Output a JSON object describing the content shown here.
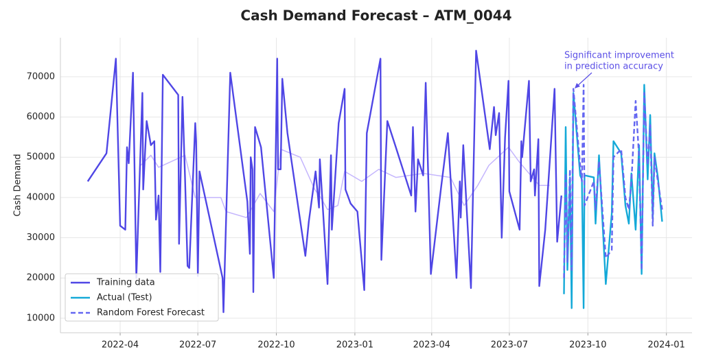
{
  "chart_data": {
    "type": "line",
    "title": "Cash Demand Forecast – ATM_0044",
    "y_label": "Cash Demand",
    "annotation": [
      "Significant improvement",
      "in prediction accuracy"
    ],
    "annotation_color": "#5b4fe6",
    "grid": true,
    "legend": "lower left",
    "xlim": [
      "2022-01-21",
      "2024-01-31"
    ],
    "xticks": [
      {
        "value": "2022-04-01",
        "label": "2022-04"
      },
      {
        "value": "2022-07-01",
        "label": "2022-07"
      },
      {
        "value": "2022-10-01",
        "label": "2022-10"
      },
      {
        "value": "2023-01-01",
        "label": "2023-01"
      },
      {
        "value": "2023-04-01",
        "label": "2023-04"
      },
      {
        "value": "2023-07-01",
        "label": "2023-07"
      },
      {
        "value": "2023-10-01",
        "label": "2023-10"
      },
      {
        "value": "2024-01-01",
        "label": "2024-01"
      }
    ],
    "ylim": [
      6400,
      79700
    ],
    "yticks": [
      10000,
      20000,
      30000,
      40000,
      50000,
      60000,
      70000
    ],
    "series": [
      {
        "name": "Training data",
        "color": "#4f46e5",
        "style": "solid",
        "x": [
          "2022-02-22",
          "2022-03-16",
          "2022-03-27",
          "2022-04-01",
          "2022-04-07",
          "2022-04-09",
          "2022-04-11",
          "2022-04-16",
          "2022-04-20",
          "2022-04-27",
          "2022-04-28",
          "2022-05-02",
          "2022-05-07",
          "2022-05-11",
          "2022-05-13",
          "2022-05-16",
          "2022-05-18",
          "2022-05-21",
          "2022-06-08",
          "2022-06-09",
          "2022-06-13",
          "2022-06-16",
          "2022-06-19",
          "2022-06-21",
          "2022-06-28",
          "2022-06-29",
          "2022-07-01",
          "2022-07-03",
          "2022-07-30",
          "2022-07-31",
          "2022-08-08",
          "2022-08-28",
          "2022-08-31",
          "2022-09-01",
          "2022-09-03",
          "2022-09-04",
          "2022-09-06",
          "2022-09-13",
          "2022-09-28",
          "2022-10-02",
          "2022-10-03",
          "2022-10-06",
          "2022-10-08",
          "2022-10-14",
          "2022-11-04",
          "2022-11-08",
          "2022-11-16",
          "2022-11-20",
          "2022-11-21",
          "2022-11-30",
          "2022-12-04",
          "2022-12-05",
          "2022-12-13",
          "2022-12-20",
          "2022-12-21",
          "2022-12-27",
          "2023-01-04",
          "2023-01-12",
          "2023-01-15",
          "2023-01-31",
          "2023-02-01",
          "2023-02-08",
          "2023-02-18",
          "2023-03-08",
          "2023-03-10",
          "2023-03-13",
          "2023-03-16",
          "2023-03-22",
          "2023-03-25",
          "2023-03-31",
          "2023-04-12",
          "2023-04-20",
          "2023-04-30",
          "2023-05-04",
          "2023-05-05",
          "2023-05-08",
          "2023-05-17",
          "2023-05-23",
          "2023-06-08",
          "2023-06-13",
          "2023-06-15",
          "2023-06-19",
          "2023-06-22",
          "2023-06-26",
          "2023-06-30",
          "2023-07-01",
          "2023-07-13",
          "2023-07-15",
          "2023-07-16",
          "2023-07-24",
          "2023-07-26",
          "2023-07-30",
          "2023-07-31",
          "2023-08-04",
          "2023-08-05",
          "2023-08-12",
          "2023-08-23",
          "2023-08-26",
          "2023-08-31"
        ],
        "values": [
          44000,
          51000,
          74500,
          33000,
          32000,
          52500,
          48500,
          71000,
          20000,
          66000,
          42000,
          59000,
          53000,
          54000,
          34500,
          40500,
          21500,
          70500,
          65500,
          28500,
          65000,
          45000,
          23000,
          22500,
          58500,
          54000,
          20500,
          46500,
          20000,
          11500,
          71000,
          39000,
          26000,
          50000,
          47000,
          16500,
          57500,
          52500,
          20000,
          74500,
          47000,
          47000,
          69500,
          56000,
          25500,
          34000,
          46500,
          37500,
          49500,
          18500,
          50500,
          32000,
          58500,
          67000,
          42000,
          38500,
          36500,
          17000,
          56000,
          74500,
          24500,
          59000,
          52500,
          40500,
          57500,
          36500,
          49500,
          45500,
          68500,
          21000,
          42500,
          56000,
          20000,
          44000,
          35000,
          53000,
          17500,
          76500,
          52000,
          62500,
          55500,
          61000,
          30000,
          55000,
          69000,
          41500,
          32000,
          54000,
          50000,
          69000,
          44000,
          47000,
          40500,
          54500,
          18000,
          32000,
          67000,
          29000,
          40500
        ]
      },
      {
        "name": "Actual (Test)",
        "color": "#14a9d8",
        "style": "solid",
        "x": [
          "2023-09-03",
          "2023-09-05",
          "2023-09-07",
          "2023-09-10",
          "2023-09-12",
          "2023-09-14",
          "2023-09-22",
          "2023-09-24",
          "2023-09-26",
          "2023-09-27",
          "2023-10-08",
          "2023-10-10",
          "2023-10-14",
          "2023-10-22",
          "2023-10-29",
          "2023-10-31",
          "2023-11-09",
          "2023-11-14",
          "2023-11-18",
          "2023-11-21",
          "2023-11-26",
          "2023-11-30",
          "2023-12-03",
          "2023-12-06",
          "2023-12-10",
          "2023-12-13",
          "2023-12-16",
          "2023-12-18",
          "2023-12-22",
          "2023-12-27"
        ],
        "values": [
          16000,
          57500,
          22000,
          45000,
          12500,
          66000,
          45500,
          44500,
          12500,
          45500,
          45000,
          33500,
          50500,
          18500,
          36000,
          54000,
          51000,
          38000,
          33500,
          46000,
          32000,
          53000,
          21000,
          68000,
          44500,
          60500,
          35000,
          51000,
          45000,
          34000
        ]
      },
      {
        "name": "Random Forest Forecast",
        "color": "#6366f1",
        "style": "dashed",
        "x": [
          "2023-09-03",
          "2023-09-05",
          "2023-09-07",
          "2023-09-10",
          "2023-09-12",
          "2023-09-14",
          "2023-09-22",
          "2023-09-24",
          "2023-09-26",
          "2023-09-27",
          "2023-10-08",
          "2023-10-10",
          "2023-10-14",
          "2023-10-22",
          "2023-10-29",
          "2023-10-31",
          "2023-11-09",
          "2023-11-14",
          "2023-11-18",
          "2023-11-21",
          "2023-11-26",
          "2023-11-30",
          "2023-12-03",
          "2023-12-06",
          "2023-12-10",
          "2023-12-13",
          "2023-12-16",
          "2023-12-18",
          "2023-12-22",
          "2023-12-27"
        ],
        "values": [
          20000,
          46000,
          24000,
          47000,
          22000,
          67000,
          48000,
          44000,
          68000,
          38000,
          44000,
          37000,
          49000,
          25000,
          27000,
          50000,
          52000,
          40000,
          37000,
          44000,
          64000,
          50000,
          22000,
          66000,
          48000,
          58000,
          33000,
          50000,
          44000,
          37000
        ]
      },
      {
        "color": "#c4b5fd",
        "style": "solid",
        "x": [
          "2022-04-25",
          "2022-05-07",
          "2022-05-16",
          "2022-06-16",
          "2022-06-28",
          "2022-07-10",
          "2022-07-28",
          "2022-08-03",
          "2022-08-27",
          "2022-09-12",
          "2022-09-28",
          "2022-10-06",
          "2022-10-29",
          "2022-11-15",
          "2022-11-22",
          "2022-11-30",
          "2022-12-12",
          "2022-12-20",
          "2023-01-09",
          "2023-01-29",
          "2023-02-18",
          "2023-03-22",
          "2023-04-23",
          "2023-05-09",
          "2023-05-25",
          "2023-06-07",
          "2023-06-30",
          "2023-07-12",
          "2023-08-05",
          "2023-08-17"
        ],
        "values": [
          48000,
          50500,
          47500,
          50500,
          40000,
          40000,
          40000,
          36500,
          35000,
          41000,
          36500,
          52000,
          50000,
          42000,
          40000,
          37000,
          38000,
          46500,
          44000,
          47000,
          45000,
          46000,
          45000,
          38000,
          43000,
          48000,
          52500,
          49000,
          43000,
          43000
        ]
      }
    ]
  }
}
